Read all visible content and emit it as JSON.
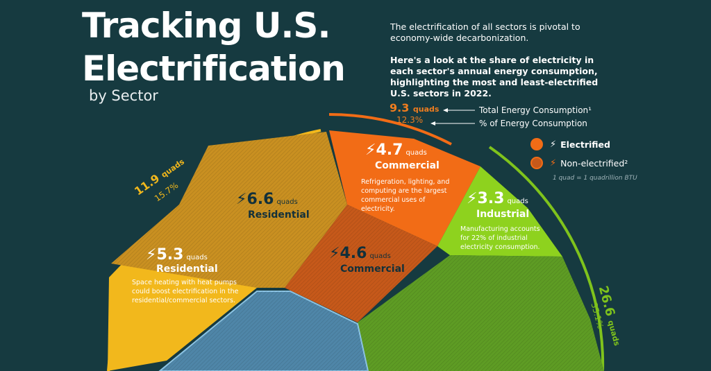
{
  "title_lines": [
    "Tracking U.S.",
    "Electrification"
  ],
  "subtitle": "by Sector",
  "intro": {
    "text": "The electrification of all sectors is pivotal to economy-wide decarbonization.",
    "highlight": "Here's a look at the share of electricity in each sector's annual energy consumption, highlighting the most and least-electrified U.S. sectors in 2022."
  },
  "annotations": {
    "total_label": "Total Energy Consumption¹",
    "pct_label": "% of Energy Consumption"
  },
  "legend": {
    "electrified": "Electrified",
    "non_electrified": "Non-electrified²",
    "unit_note": "1 quad = 1 quadrillion BTU",
    "colors": {
      "electrified": "#f26c16",
      "non_electrified": "#c6591a"
    }
  },
  "chart_data": {
    "type": "pie",
    "unit": "quads",
    "sectors": [
      {
        "name": "Residential",
        "total": "11.9",
        "pct": "15.7%",
        "color": "#f2b81c",
        "electrified": {
          "value": "5.3",
          "label": "Residential",
          "desc": "Space heating with heat pumps could boost electrification in the residential/commercial sectors."
        },
        "non_electrified": {
          "value": "6.6",
          "label": "Residential"
        }
      },
      {
        "name": "Commercial",
        "total": "9.3",
        "pct": "12.3%",
        "color": "#f26c16",
        "electrified": {
          "value": "4.7",
          "label": "Commercial",
          "desc": "Refrigeration, lighting, and computing are the largest commercial uses of electricity."
        },
        "non_electrified": {
          "value": "4.6",
          "label": "Commercial"
        }
      },
      {
        "name": "Industrial",
        "total": "26.6",
        "pct": "35.1%",
        "color": "#7fc31c",
        "electrified": {
          "value": "3.3",
          "label": "Industrial",
          "desc": "Manufacturing accounts for 22% of industrial electricity consumption."
        },
        "non_electrified": {
          "value": "",
          "label": ""
        }
      }
    ],
    "unit_word": "quads"
  }
}
